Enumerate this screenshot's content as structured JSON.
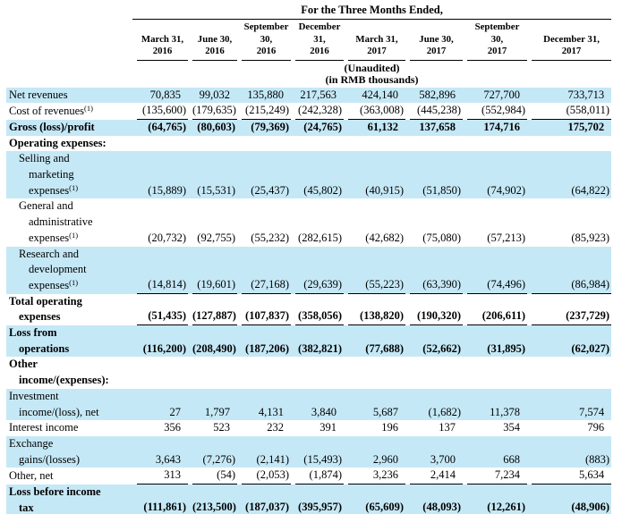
{
  "colors": {
    "row_highlight": "#c5e8f6",
    "rule": "#000000",
    "text": "#000000"
  },
  "table": {
    "title": "For the Three Months Ended,",
    "subtitle": "(Unaudited)\n(in RMB thousands)",
    "columns": [
      "March 31,\n2016",
      "June 30,\n2016",
      "September\n30,\n2016",
      "December\n31,\n2016",
      "March 31,\n2017",
      "June 30,\n2017",
      "September\n30,\n2017",
      "December 31,\n2017"
    ],
    "footnote_marker": "(1)",
    "rows": [
      {
        "label": "Net revenues",
        "sup": null,
        "bold": false,
        "indent": 0,
        "shaded": true,
        "underline": false,
        "values": [
          "70,835",
          "99,032",
          "135,880",
          "217,563",
          "424,140",
          "582,896",
          "727,700",
          "733,713"
        ]
      },
      {
        "label": "Cost of revenues",
        "sup": "(1)",
        "bold": false,
        "indent": 0,
        "shaded": false,
        "underline": true,
        "values": [
          "(135,600)",
          "(179,635)",
          "(215,249)",
          "(242,328)",
          "(363,008)",
          "(445,238)",
          "(552,984)",
          "(558,011)"
        ]
      },
      {
        "label": "Gross (loss)/profit",
        "sup": null,
        "bold": true,
        "indent": 0,
        "shaded": true,
        "underline": false,
        "values": [
          "(64,765)",
          "(80,603)",
          "(79,369)",
          "(24,765)",
          "61,132",
          "137,658",
          "174,716",
          "175,702"
        ]
      },
      {
        "label": "Operating expenses:",
        "sup": null,
        "bold": true,
        "indent": 0,
        "shaded": false,
        "underline": false,
        "values": []
      },
      {
        "label": "Selling and\nmarketing\nexpenses",
        "sup": "(1)",
        "bold": false,
        "indent": 1,
        "shaded": true,
        "underline": false,
        "values": [
          "(15,889)",
          "(15,531)",
          "(25,437)",
          "(45,802)",
          "(40,915)",
          "(51,850)",
          "(74,902)",
          "(64,822)"
        ]
      },
      {
        "label": "General and\nadministrative\nexpenses",
        "sup": "(1)",
        "bold": false,
        "indent": 1,
        "shaded": false,
        "underline": false,
        "values": [
          "(20,732)",
          "(92,755)",
          "(55,232)",
          "(282,615)",
          "(42,682)",
          "(75,080)",
          "(57,213)",
          "(85,923)"
        ]
      },
      {
        "label": "Research and\ndevelopment\nexpenses",
        "sup": "(1)",
        "bold": false,
        "indent": 1,
        "shaded": true,
        "underline": true,
        "values": [
          "(14,814)",
          "(19,601)",
          "(27,168)",
          "(29,639)",
          "(55,223)",
          "(63,390)",
          "(74,496)",
          "(86,984)"
        ]
      },
      {
        "label": "Total operating\nexpenses",
        "sup": null,
        "bold": true,
        "indent": 0,
        "shaded": false,
        "underline": true,
        "values": [
          "(51,435)",
          "(127,887)",
          "(107,837)",
          "(358,056)",
          "(138,820)",
          "(190,320)",
          "(206,611)",
          "(237,729)"
        ]
      },
      {
        "label": "Loss from\noperations",
        "sup": null,
        "bold": true,
        "indent": 0,
        "shaded": true,
        "underline": false,
        "values": [
          "(116,200)",
          "(208,490)",
          "(187,206)",
          "(382,821)",
          "(77,688)",
          "(52,662)",
          "(31,895)",
          "(62,027)"
        ]
      },
      {
        "label": "Other\nincome/(expenses):",
        "sup": null,
        "bold": true,
        "indent": 0,
        "shaded": false,
        "underline": false,
        "values": []
      },
      {
        "label": "Investment\nincome/(loss), net",
        "sup": null,
        "bold": false,
        "indent": 0,
        "shaded": true,
        "underline": false,
        "values": [
          "27",
          "1,797",
          "4,131",
          "3,840",
          "5,687",
          "(1,682)",
          "11,378",
          "7,574"
        ]
      },
      {
        "label": "Interest income",
        "sup": null,
        "bold": false,
        "indent": 0,
        "shaded": false,
        "underline": false,
        "values": [
          "356",
          "523",
          "232",
          "391",
          "196",
          "137",
          "354",
          "796"
        ]
      },
      {
        "label": "Exchange\ngains/(losses)",
        "sup": null,
        "bold": false,
        "indent": 0,
        "shaded": true,
        "underline": false,
        "values": [
          "3,643",
          "(7,276)",
          "(2,141)",
          "(15,493)",
          "2,960",
          "3,700",
          "668",
          "(883)"
        ]
      },
      {
        "label": "Other, net",
        "sup": null,
        "bold": false,
        "indent": 0,
        "shaded": false,
        "underline": true,
        "values": [
          "313",
          "(54)",
          "(2,053)",
          "(1,874)",
          "3,236",
          "2,414",
          "7,234",
          "5,634"
        ]
      },
      {
        "label": "Loss before income\ntax",
        "sup": null,
        "bold": true,
        "indent": 0,
        "shaded": true,
        "underline": true,
        "values": [
          "(111,861)",
          "(213,500)",
          "(187,037)",
          "(395,957)",
          "(65,609)",
          "(48,093)",
          "(12,261)",
          "(48,906)"
        ]
      }
    ]
  }
}
